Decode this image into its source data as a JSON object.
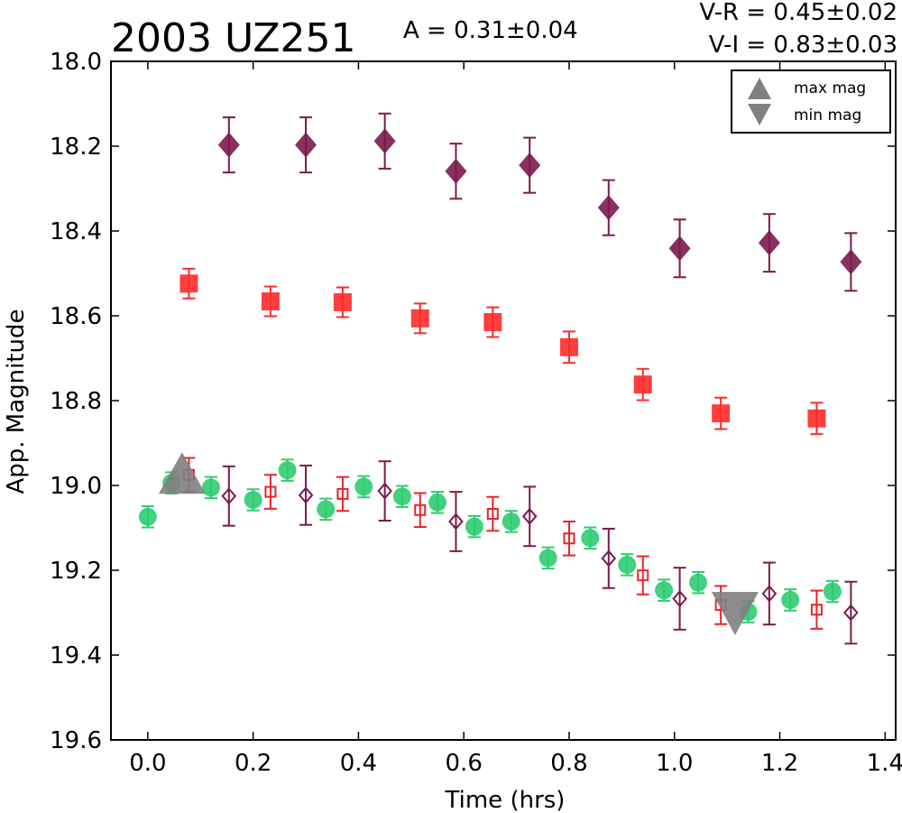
{
  "chart_data": {
    "type": "scatter",
    "title": "2003 UZ251",
    "amplitude_label": "A  = 0.31±0.04",
    "color_index_labels": [
      "V-R = 0.45±0.02",
      "V-I  = 0.83±0.03"
    ],
    "xlabel": "Time (hrs)",
    "ylabel": "App. Magnitude",
    "xlim": [
      -0.07,
      1.42
    ],
    "ylim": [
      19.6,
      18.0
    ],
    "y_inverted": true,
    "xticks": [
      0.0,
      0.2,
      0.4,
      0.6,
      0.8,
      1.0,
      1.2,
      1.4
    ],
    "yticks": [
      18.0,
      18.2,
      18.4,
      18.6,
      18.8,
      19.0,
      19.2,
      19.4,
      19.6
    ],
    "grid": false,
    "legend": {
      "placement": "top-right",
      "entries": [
        {
          "label": "max mag",
          "marker": "triangle-up",
          "color": "#808080"
        },
        {
          "label": "min mag",
          "marker": "triangle-down",
          "color": "#808080"
        }
      ]
    },
    "series": [
      {
        "marker": "diamond",
        "filled": true,
        "color": "#7b1a4c",
        "x": [
          0.154,
          0.3,
          0.45,
          0.585,
          0.725,
          0.875,
          1.01,
          1.18,
          1.335
        ],
        "y": [
          18.197,
          18.197,
          18.188,
          18.259,
          18.245,
          18.345,
          18.441,
          18.428,
          18.473
        ],
        "err": [
          0.065,
          0.065,
          0.065,
          0.065,
          0.065,
          0.065,
          0.068,
          0.068,
          0.068
        ]
      },
      {
        "marker": "square",
        "filled": true,
        "color": "#ff2a2a",
        "x": [
          0.078,
          0.233,
          0.37,
          0.517,
          0.655,
          0.8,
          0.94,
          1.088,
          1.27
        ],
        "y": [
          18.524,
          18.566,
          18.568,
          18.606,
          18.615,
          18.674,
          18.762,
          18.83,
          18.842
        ],
        "err": [
          0.035,
          0.035,
          0.035,
          0.035,
          0.035,
          0.037,
          0.037,
          0.037,
          0.037
        ]
      },
      {
        "marker": "circle",
        "filled": true,
        "color": "#2ecc71",
        "x": [
          0.0,
          0.045,
          0.12,
          0.2,
          0.265,
          0.338,
          0.41,
          0.483,
          0.55,
          0.62,
          0.69,
          0.76,
          0.84,
          0.91,
          0.98,
          1.045,
          1.14,
          1.22,
          1.3
        ],
        "y": [
          19.074,
          18.994,
          19.005,
          19.034,
          18.964,
          19.056,
          19.003,
          19.026,
          19.04,
          19.097,
          19.085,
          19.171,
          19.124,
          19.187,
          19.247,
          19.229,
          19.298,
          19.27,
          19.25
        ],
        "err": [
          0.025,
          0.025,
          0.025,
          0.025,
          0.025,
          0.025,
          0.025,
          0.025,
          0.025,
          0.025,
          0.025,
          0.025,
          0.025,
          0.025,
          0.025,
          0.025,
          0.025,
          0.025,
          0.025
        ]
      },
      {
        "marker": "square",
        "filled": false,
        "color": "#e8242a",
        "x": [
          0.078,
          0.233,
          0.37,
          0.517,
          0.655,
          0.8,
          0.94,
          1.088,
          1.27
        ],
        "y": [
          18.975,
          19.015,
          19.02,
          19.058,
          19.067,
          19.125,
          19.212,
          19.282,
          19.293
        ],
        "err": [
          0.04,
          0.04,
          0.04,
          0.04,
          0.04,
          0.04,
          0.045,
          0.045,
          0.045
        ]
      },
      {
        "marker": "diamond",
        "filled": false,
        "color": "#7b1a4c",
        "x": [
          0.154,
          0.3,
          0.45,
          0.585,
          0.725,
          0.875,
          1.01,
          1.18,
          1.335
        ],
        "y": [
          19.025,
          19.023,
          19.013,
          19.085,
          19.073,
          19.172,
          19.267,
          19.255,
          19.3
        ],
        "err": [
          0.07,
          0.07,
          0.07,
          0.07,
          0.07,
          0.07,
          0.073,
          0.073,
          0.073
        ]
      }
    ],
    "extrema": [
      {
        "type": "max",
        "marker": "triangle-up",
        "x": 0.065,
        "y": 18.99,
        "color": "#808080"
      },
      {
        "type": "min",
        "marker": "triangle-down",
        "x": 1.115,
        "y": 19.285,
        "color": "#808080"
      }
    ]
  }
}
